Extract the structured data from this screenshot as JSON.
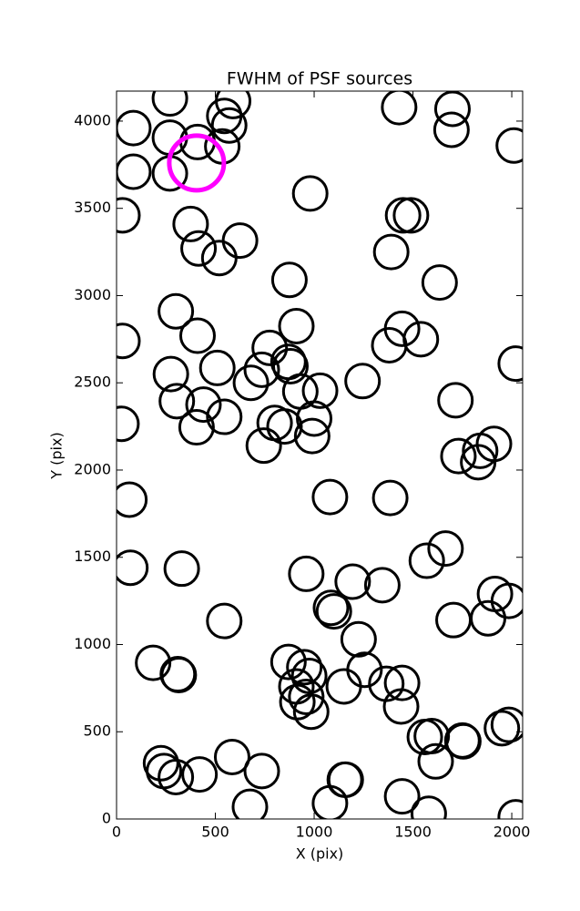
{
  "chart_data": {
    "type": "scatter",
    "title": "FWHM of PSF sources",
    "x_label": "X (pix)",
    "y_label": "Y (pix)",
    "xlim": [
      0,
      2055
    ],
    "ylim": [
      0,
      4172
    ],
    "xticks": [
      0,
      500,
      1000,
      1500,
      2000
    ],
    "yticks": [
      0,
      500,
      1000,
      1500,
      2000,
      2500,
      3000,
      3500,
      4000
    ],
    "series": [
      {
        "color": "#000000",
        "x": [
          270,
          590,
          85,
          270,
          410,
          545,
          570,
          535,
          85,
          270,
          1430,
          1700,
          1695,
          2010,
          980,
          30,
          375,
          1450,
          1490,
          415,
          625,
          520,
          1390,
          875,
          1635,
          300,
          410,
          910,
          1445,
          1380,
          1540,
          30,
          2020,
          775,
          735,
          870,
          880,
          510,
          275,
          680,
          1245,
          930,
          1030,
          305,
          440,
          1715,
          25,
          545,
          1000,
          800,
          850,
          405,
          990,
          745,
          1730,
          1840,
          1830,
          1910,
          65,
          1080,
          1385,
          70,
          330,
          1570,
          1665,
          960,
          1195,
          1345,
          1085,
          1100,
          1915,
          1985,
          1880,
          1705,
          545,
          1225,
          185,
          310,
          315,
          870,
          950,
          975,
          1255,
          1365,
          1445,
          1150,
          910,
          960,
          915,
          985,
          1440,
          1950,
          1985,
          1560,
          1595,
          1750,
          1755,
          225,
          240,
          300,
          420,
          585,
          735,
          1615,
          1155,
          1160,
          1445,
          1080,
          675,
          1580,
          2020
        ],
        "values": [
          4130,
          4115,
          3960,
          3905,
          3880,
          4030,
          3975,
          3855,
          3710,
          3700,
          4080,
          4070,
          3950,
          3860,
          3585,
          3460,
          3410,
          3460,
          3460,
          3270,
          3315,
          3215,
          3250,
          3090,
          3075,
          2910,
          2770,
          2825,
          2810,
          2715,
          2750,
          2740,
          2610,
          2700,
          2575,
          2620,
          2595,
          2585,
          2550,
          2500,
          2510,
          2450,
          2455,
          2395,
          2375,
          2400,
          2265,
          2305,
          2295,
          2270,
          2250,
          2245,
          2195,
          2140,
          2080,
          2110,
          2045,
          2150,
          1830,
          1845,
          1840,
          1440,
          1435,
          1480,
          1550,
          1405,
          1360,
          1340,
          1210,
          1190,
          1290,
          1250,
          1150,
          1140,
          1135,
          1030,
          895,
          830,
          825,
          900,
          870,
          820,
          855,
          775,
          780,
          760,
          760,
          700,
          670,
          615,
          645,
          520,
          540,
          470,
          475,
          450,
          445,
          320,
          275,
          240,
          255,
          355,
          275,
          330,
          225,
          225,
          130,
          90,
          70,
          30,
          10
        ]
      },
      {
        "color": "#ff00ff",
        "x": [
          405
        ],
        "values": [
          3760
        ]
      }
    ]
  }
}
